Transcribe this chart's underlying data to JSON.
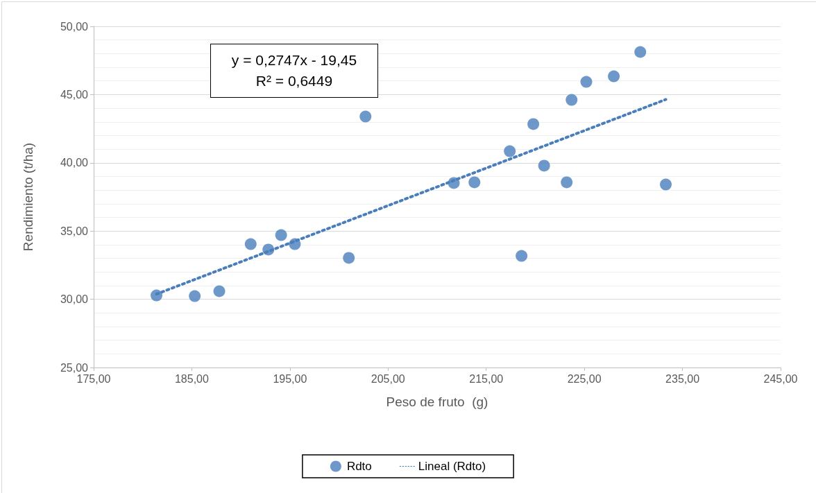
{
  "chart_data": {
    "type": "scatter",
    "xlabel": "Peso de fruto  (g)",
    "ylabel": "Rendimiento (t/ha)",
    "annotations": [
      "y = 0,2747x - 19,45",
      "R² = 0,6449"
    ],
    "series": [
      {
        "name": "Rdto",
        "color": "#4a7ebb",
        "marker": "circle",
        "x": [
          181.4,
          185.3,
          187.8,
          191.0,
          192.8,
          194.1,
          195.5,
          201.0,
          202.7,
          211.7,
          213.8,
          217.4,
          218.6,
          219.8,
          220.9,
          223.2,
          223.7,
          225.2,
          228.0,
          230.7,
          233.3
        ],
        "values": [
          30.28,
          30.23,
          30.59,
          34.04,
          33.64,
          34.7,
          34.04,
          33.03,
          43.39,
          38.52,
          38.57,
          40.85,
          33.18,
          42.84,
          39.79,
          38.57,
          44.61,
          45.93,
          46.34,
          48.12,
          38.41
        ]
      },
      {
        "name": "Lineal (Rdto)",
        "type": "line",
        "color": "#4a7ebb",
        "line_style": "dotted",
        "marker": "none",
        "x": [
          181.4,
          233.3
        ],
        "values": [
          30.38,
          44.64
        ]
      }
    ],
    "xlim": [
      175,
      245
    ],
    "xticks": [
      {
        "value": 175,
        "label": "175,00"
      },
      {
        "value": 185,
        "label": "185,00"
      },
      {
        "value": 195,
        "label": "195,00"
      },
      {
        "value": 205,
        "label": "205,00"
      },
      {
        "value": 215,
        "label": "215,00"
      },
      {
        "value": 225,
        "label": "225,00"
      },
      {
        "value": 235,
        "label": "235,00"
      },
      {
        "value": 245,
        "label": "245,00"
      }
    ],
    "ylim": [
      25,
      50
    ],
    "yticks": [
      {
        "value": 25,
        "label": "25,00"
      },
      {
        "value": 30,
        "label": "30,00"
      },
      {
        "value": 35,
        "label": "35,00"
      },
      {
        "value": 40,
        "label": "40,00"
      },
      {
        "value": 45,
        "label": "45,00"
      },
      {
        "value": 50,
        "label": "50,00"
      }
    ],
    "grid": "y",
    "legend": "bottom"
  }
}
